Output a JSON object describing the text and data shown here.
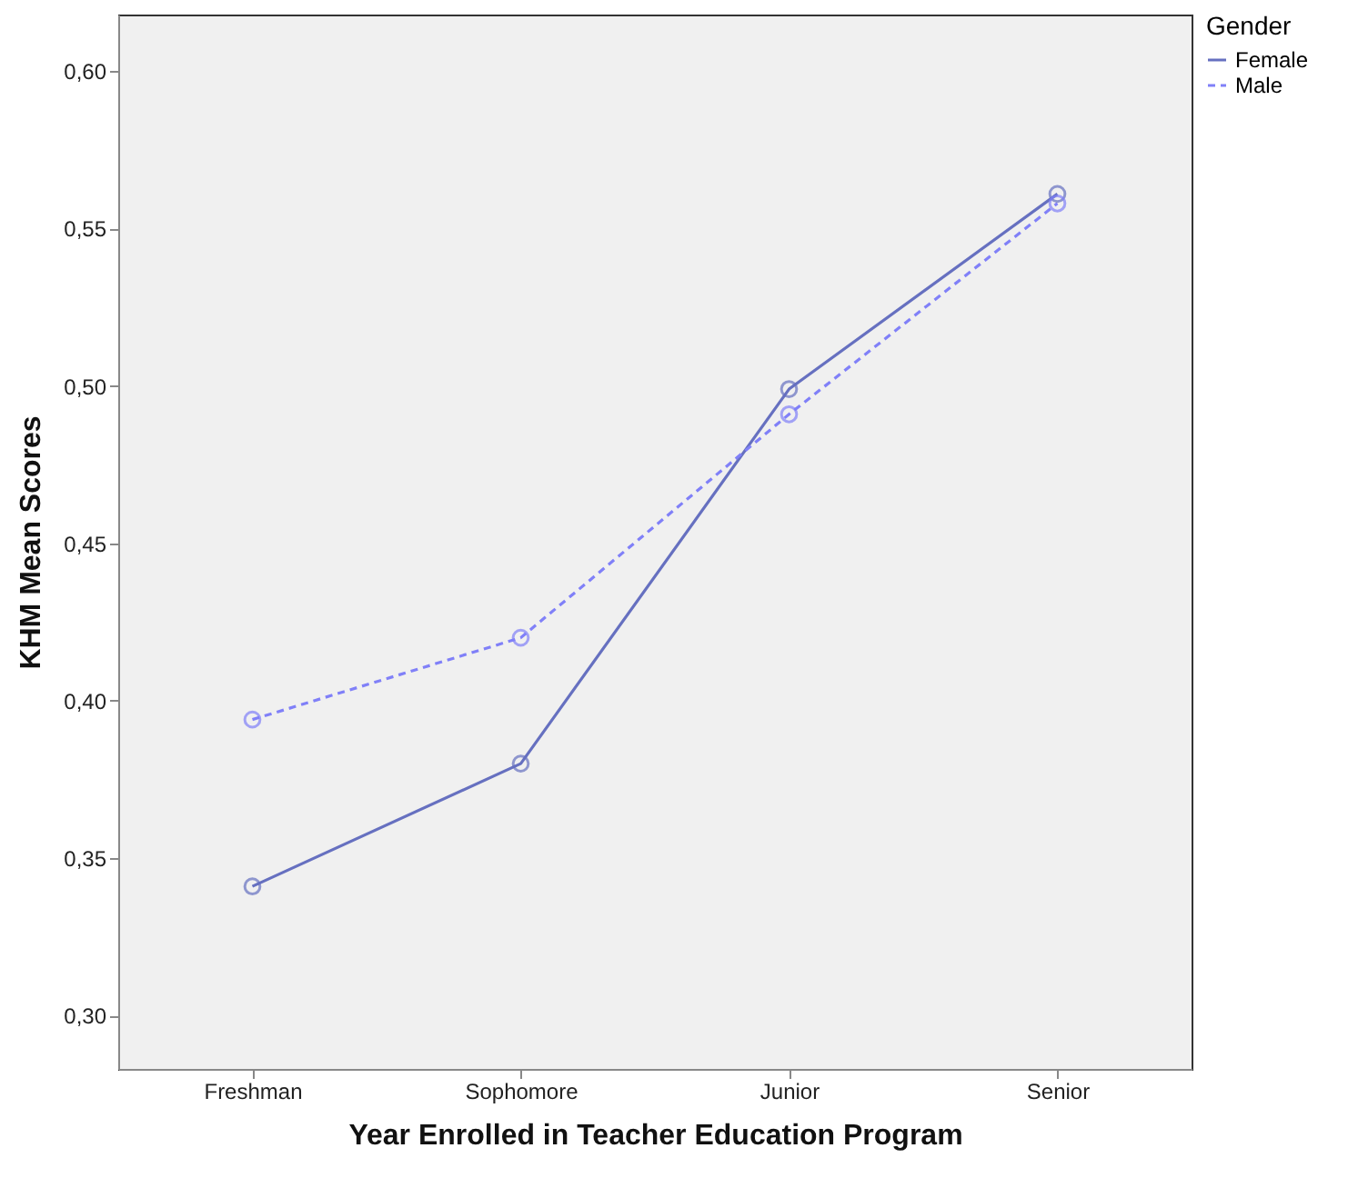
{
  "chart_data": {
    "type": "line",
    "xlabel": "Year Enrolled in Teacher Education Program",
    "ylabel": "KHM Mean Scores",
    "legend_title": "Gender",
    "legend": "top right",
    "marker": "circle",
    "grid": false,
    "categories": [
      "Freshman",
      "Sophomore",
      "Junior",
      "Senior"
    ],
    "ylim": [
      0.283,
      0.618
    ],
    "yticks": [
      {
        "value": 0.3,
        "label": "0,30"
      },
      {
        "value": 0.35,
        "label": "0,35"
      },
      {
        "value": 0.4,
        "label": "0,40"
      },
      {
        "value": 0.45,
        "label": "0,45"
      },
      {
        "value": 0.5,
        "label": "0,50"
      },
      {
        "value": 0.55,
        "label": "0,55"
      },
      {
        "value": 0.6,
        "label": "0,60"
      }
    ],
    "series": [
      {
        "name": "Female",
        "color": "#6670c0",
        "line_style": "solid",
        "values": [
          0.341,
          0.38,
          0.499,
          0.561
        ]
      },
      {
        "name": "Male",
        "color": "#8080f8",
        "line_style": "dashed",
        "values": [
          0.394,
          0.42,
          0.491,
          0.558
        ]
      }
    ]
  }
}
